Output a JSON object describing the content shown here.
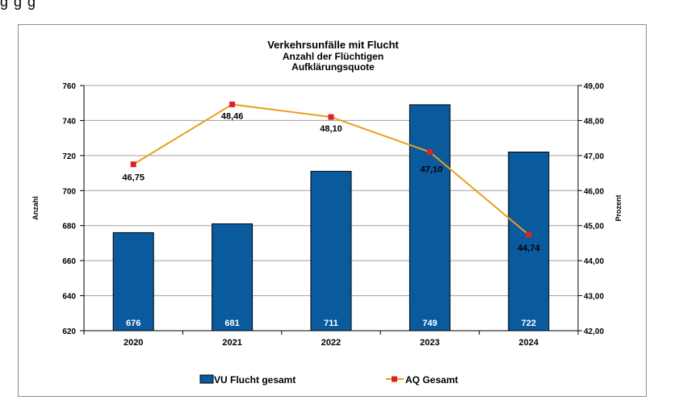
{
  "top_fragment": "g                                      g  g",
  "chart_data": {
    "type": "bar",
    "title": "Verkehrsunfälle  mit Flucht",
    "subtitle": "Anzahl der Flüchtigen",
    "subtitle2": "Aufklärungsquote",
    "categories": [
      "2020",
      "2021",
      "2022",
      "2023",
      "2024"
    ],
    "ylabel": "Anzahl",
    "y2label": "Prozent",
    "ylim": [
      620,
      760
    ],
    "yticks": [
      "620",
      "640",
      "660",
      "680",
      "700",
      "720",
      "740",
      "760"
    ],
    "y2lim": [
      42,
      49
    ],
    "y2ticks": [
      "42,00",
      "43,00",
      "44,00",
      "45,00",
      "46,00",
      "47,00",
      "48,00",
      "49,00"
    ],
    "grid": true,
    "legend_position": "bottom",
    "series": [
      {
        "name": "VU Flucht gesamt",
        "type": "bar",
        "axis": "left",
        "values": [
          676,
          681,
          711,
          749,
          722
        ],
        "labels": [
          "676",
          "681",
          "711",
          "749",
          "722"
        ],
        "color": "#0a5a9e"
      },
      {
        "name": "AQ Gesamt",
        "type": "line",
        "axis": "right",
        "values": [
          46.75,
          48.46,
          48.1,
          47.1,
          44.74
        ],
        "labels": [
          "46,75",
          "48,46",
          "48,10",
          "47,10",
          "44,74"
        ],
        "color": "#e8a020",
        "marker_color": "#dd2222"
      }
    ]
  }
}
